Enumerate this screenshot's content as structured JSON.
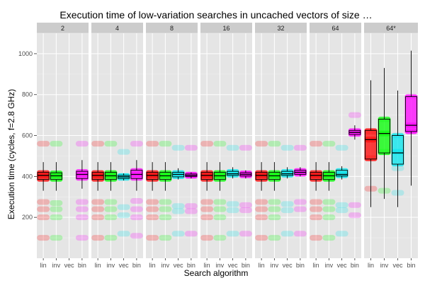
{
  "chart_data": {
    "type": "boxplot",
    "title": "Execution time of low-variation searches in uncached vectors of size …",
    "xlabel": "Search algorithm",
    "ylabel": "Execution time (cycles, f=2.8 GHz)",
    "ylim": [
      0,
      1100
    ],
    "yticks": [
      200,
      400,
      600,
      800,
      1000
    ],
    "grid": true,
    "categories": [
      "lin",
      "inv",
      "vec",
      "bin"
    ],
    "colors": {
      "lin": "#ff0000",
      "inv": "#00ff00",
      "vec": "#00e5ee",
      "bin": "#ff00ff",
      "panel_bg": "#e5e5e5",
      "strip_bg": "#cccccc",
      "grid": "#ffffff"
    },
    "facets": [
      {
        "label": "2",
        "boxes": [
          {
            "alg": "lin",
            "q1": 385,
            "median": 405,
            "q3": 420,
            "lo": 330,
            "hi": 470,
            "clusters": [
              100,
              200,
              240,
              275,
              405,
              560
            ]
          },
          {
            "alg": "inv",
            "q1": 385,
            "median": 403,
            "q3": 418,
            "lo": 330,
            "hi": 470,
            "clusters": [
              100,
              200,
              240,
              270,
              405,
              560
            ]
          },
          {
            "alg": "vec",
            "q1": null,
            "median": null,
            "q3": null,
            "lo": null,
            "hi": null,
            "clusters": []
          },
          {
            "alg": "bin",
            "q1": 390,
            "median": 410,
            "q3": 425,
            "lo": 340,
            "hi": 480,
            "clusters": [
              100,
              200,
              240,
              275,
              410,
              560
            ]
          }
        ]
      },
      {
        "label": "4",
        "boxes": [
          {
            "alg": "lin",
            "q1": 385,
            "median": 405,
            "q3": 420,
            "lo": 330,
            "hi": 470,
            "clusters": [
              100,
              200,
              240,
              275,
              405,
              560
            ]
          },
          {
            "alg": "inv",
            "q1": 385,
            "median": 403,
            "q3": 420,
            "lo": 330,
            "hi": 470,
            "clusters": [
              100,
              200,
              240,
              275,
              405,
              560
            ]
          },
          {
            "alg": "vec",
            "q1": 390,
            "median": 398,
            "q3": 405,
            "lo": 380,
            "hi": 415,
            "clusters": [
              120,
              210,
              250,
              400,
              520
            ]
          },
          {
            "alg": "bin",
            "q1": 390,
            "median": 410,
            "q3": 430,
            "lo": 330,
            "hi": 480,
            "clusters": [
              110,
              200,
              240,
              280,
              410,
              560
            ]
          }
        ]
      },
      {
        "label": "8",
        "boxes": [
          {
            "alg": "lin",
            "q1": 385,
            "median": 405,
            "q3": 420,
            "lo": 330,
            "hi": 470,
            "clusters": [
              100,
              200,
              240,
              275,
              405,
              560
            ]
          },
          {
            "alg": "inv",
            "q1": 385,
            "median": 403,
            "q3": 420,
            "lo": 330,
            "hi": 470,
            "clusters": [
              100,
              200,
              240,
              275,
              405,
              560
            ]
          },
          {
            "alg": "vec",
            "q1": 398,
            "median": 410,
            "q3": 420,
            "lo": 385,
            "hi": 440,
            "clusters": [
              120,
              230,
              255,
              410,
              540
            ]
          },
          {
            "alg": "bin",
            "q1": 400,
            "median": 405,
            "q3": 412,
            "lo": 390,
            "hi": 420,
            "clusters": [
              120,
              230,
              255,
              405,
              540
            ]
          }
        ]
      },
      {
        "label": "16",
        "boxes": [
          {
            "alg": "lin",
            "q1": 385,
            "median": 405,
            "q3": 420,
            "lo": 330,
            "hi": 470,
            "clusters": [
              100,
              200,
              240,
              275,
              405,
              560
            ]
          },
          {
            "alg": "inv",
            "q1": 385,
            "median": 403,
            "q3": 420,
            "lo": 330,
            "hi": 470,
            "clusters": [
              100,
              200,
              240,
              275,
              405,
              560
            ]
          },
          {
            "alg": "vec",
            "q1": 405,
            "median": 413,
            "q3": 425,
            "lo": 390,
            "hi": 445,
            "clusters": [
              120,
              235,
              265,
              415,
              540
            ]
          },
          {
            "alg": "bin",
            "q1": 402,
            "median": 410,
            "q3": 418,
            "lo": 390,
            "hi": 430,
            "clusters": [
              120,
              235,
              260,
              410,
              540
            ]
          }
        ]
      },
      {
        "label": "32",
        "boxes": [
          {
            "alg": "lin",
            "q1": 385,
            "median": 405,
            "q3": 420,
            "lo": 330,
            "hi": 470,
            "clusters": [
              100,
              200,
              240,
              275,
              405,
              560
            ]
          },
          {
            "alg": "inv",
            "q1": 385,
            "median": 403,
            "q3": 420,
            "lo": 330,
            "hi": 470,
            "clusters": [
              100,
              200,
              240,
              275,
              405,
              560
            ]
          },
          {
            "alg": "vec",
            "q1": 405,
            "median": 413,
            "q3": 425,
            "lo": 390,
            "hi": 445,
            "clusters": [
              120,
              235,
              265,
              415,
              540
            ]
          },
          {
            "alg": "bin",
            "q1": 410,
            "median": 420,
            "q3": 430,
            "lo": 400,
            "hi": 445,
            "clusters": [
              120,
              240,
              275,
              420,
              540
            ]
          }
        ]
      },
      {
        "label": "64",
        "boxes": [
          {
            "alg": "lin",
            "q1": 385,
            "median": 405,
            "q3": 420,
            "lo": 330,
            "hi": 470,
            "clusters": [
              100,
              200,
              240,
              275,
              405,
              560
            ]
          },
          {
            "alg": "inv",
            "q1": 385,
            "median": 403,
            "q3": 420,
            "lo": 330,
            "hi": 470,
            "clusters": [
              100,
              200,
              240,
              275,
              405,
              560
            ]
          },
          {
            "alg": "vec",
            "q1": 402,
            "median": 410,
            "q3": 430,
            "lo": 385,
            "hi": 450,
            "clusters": [
              120,
              235,
              260,
              410,
              540
            ]
          },
          {
            "alg": "bin",
            "q1": 605,
            "median": 615,
            "q3": 625,
            "lo": 580,
            "hi": 650,
            "clusters": [
              210,
              260,
              615,
              700
            ]
          }
        ]
      },
      {
        "label": "64*",
        "boxes": [
          {
            "alg": "lin",
            "q1": 485,
            "median": 580,
            "q3": 625,
            "lo": 250,
            "hi": 870,
            "clusters": [
              340,
              490,
              580,
              620
            ]
          },
          {
            "alg": "inv",
            "q1": 515,
            "median": 610,
            "q3": 680,
            "lo": 290,
            "hi": 930,
            "clusters": [
              330,
              520,
              610,
              680
            ]
          },
          {
            "alg": "vec",
            "q1": 460,
            "median": 515,
            "q3": 600,
            "lo": 250,
            "hi": 820,
            "clusters": [
              320,
              440,
              520,
              600
            ]
          },
          {
            "alg": "bin",
            "q1": 620,
            "median": 650,
            "q3": 790,
            "lo": 355,
            "hi": 1015,
            "clusters": [
              620,
              650,
              790
            ]
          }
        ]
      }
    ]
  }
}
